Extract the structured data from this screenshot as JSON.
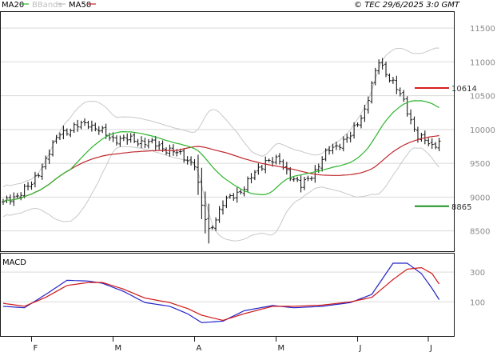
{
  "chart_data": [
    {
      "type": "ohlc",
      "panel": "price",
      "header_right": "© TEC 29/6/2025 3:0 GMT",
      "legend": [
        {
          "label": "MA20",
          "color": "#2db52d"
        },
        {
          "label": "BBands",
          "color": "#bdbdbd"
        },
        {
          "label": "MA50",
          "color": "#c0252a"
        }
      ],
      "colors": {
        "price": "#1a1a1a",
        "ma20": "#2db52d",
        "ma50": "#c0252a",
        "bbands": "#c8c8c8",
        "grid": "#d9d9d9",
        "border": "#1a1a1a"
      },
      "ylim": [
        8200,
        11750
      ],
      "yticks": [
        8500,
        9000,
        9500,
        10000,
        10500,
        11000,
        11500
      ],
      "ytick_labels": [
        "8500",
        "9000",
        "9500",
        "10000",
        "10500",
        "11000",
        "11500"
      ],
      "x_count": 124,
      "x_month_labels": [
        {
          "index": 8,
          "label": "F"
        },
        {
          "index": 31,
          "label": "M"
        },
        {
          "index": 54,
          "label": "A"
        },
        {
          "index": 77,
          "label": "M"
        },
        {
          "index": 100,
          "label": "J"
        },
        {
          "index": 124,
          "label": "J"
        }
      ],
      "levels": [
        {
          "value": 10614,
          "label": "10614",
          "color": "#d81e1e"
        },
        {
          "value": 8865,
          "label": "8865",
          "color": "#1f8f1f"
        }
      ],
      "key_points": [
        {
          "index": 0,
          "close": 8900
        },
        {
          "index": 8,
          "close": 9180
        },
        {
          "index": 16,
          "close": 9950
        },
        {
          "index": 24,
          "close": 10100
        },
        {
          "index": 30,
          "close": 9880
        },
        {
          "index": 40,
          "close": 9820
        },
        {
          "index": 47,
          "close": 9700
        },
        {
          "index": 54,
          "close": 9500
        },
        {
          "index": 56,
          "close": 8850
        },
        {
          "index": 58,
          "close": 8500
        },
        {
          "index": 62,
          "close": 8900
        },
        {
          "index": 68,
          "close": 9150
        },
        {
          "index": 74,
          "close": 9550
        },
        {
          "index": 78,
          "close": 9520
        },
        {
          "index": 84,
          "close": 9150
        },
        {
          "index": 88,
          "close": 9400
        },
        {
          "index": 92,
          "close": 9700
        },
        {
          "index": 98,
          "close": 9900
        },
        {
          "index": 102,
          "close": 10300
        },
        {
          "index": 106,
          "close": 11000
        },
        {
          "index": 110,
          "close": 10700
        },
        {
          "index": 113,
          "close": 10400
        },
        {
          "index": 117,
          "close": 9900
        },
        {
          "index": 121,
          "close": 9750
        },
        {
          "index": 123,
          "close": 9850
        }
      ]
    },
    {
      "type": "line",
      "panel": "macd",
      "title": "MACD",
      "ylim": [
        -130,
        430
      ],
      "yticks": [
        100,
        300
      ],
      "ytick_labels": [
        "100",
        "300"
      ],
      "series": [
        {
          "color": "#2323c8",
          "values_at": [
            [
              0,
              70
            ],
            [
              6,
              60
            ],
            [
              12,
              150
            ],
            [
              18,
              245
            ],
            [
              24,
              240
            ],
            [
              28,
              225
            ],
            [
              34,
              170
            ],
            [
              40,
              95
            ],
            [
              47,
              70
            ],
            [
              52,
              20
            ],
            [
              56,
              -40
            ],
            [
              62,
              -30
            ],
            [
              68,
              40
            ],
            [
              76,
              75
            ],
            [
              82,
              60
            ],
            [
              90,
              70
            ],
            [
              98,
              95
            ],
            [
              104,
              150
            ],
            [
              110,
              360
            ],
            [
              114,
              360
            ],
            [
              118,
              290
            ],
            [
              121,
              190
            ],
            [
              123,
              115
            ]
          ]
        },
        {
          "color": "#d01818",
          "values_at": [
            [
              0,
              90
            ],
            [
              6,
              70
            ],
            [
              12,
              130
            ],
            [
              18,
              210
            ],
            [
              24,
              230
            ],
            [
              28,
              230
            ],
            [
              34,
              185
            ],
            [
              40,
              125
            ],
            [
              47,
              95
            ],
            [
              52,
              55
            ],
            [
              56,
              10
            ],
            [
              62,
              -25
            ],
            [
              68,
              20
            ],
            [
              76,
              70
            ],
            [
              82,
              70
            ],
            [
              90,
              78
            ],
            [
              98,
              100
            ],
            [
              104,
              130
            ],
            [
              110,
              250
            ],
            [
              114,
              320
            ],
            [
              118,
              330
            ],
            [
              121,
              290
            ],
            [
              123,
              220
            ]
          ]
        }
      ]
    }
  ]
}
